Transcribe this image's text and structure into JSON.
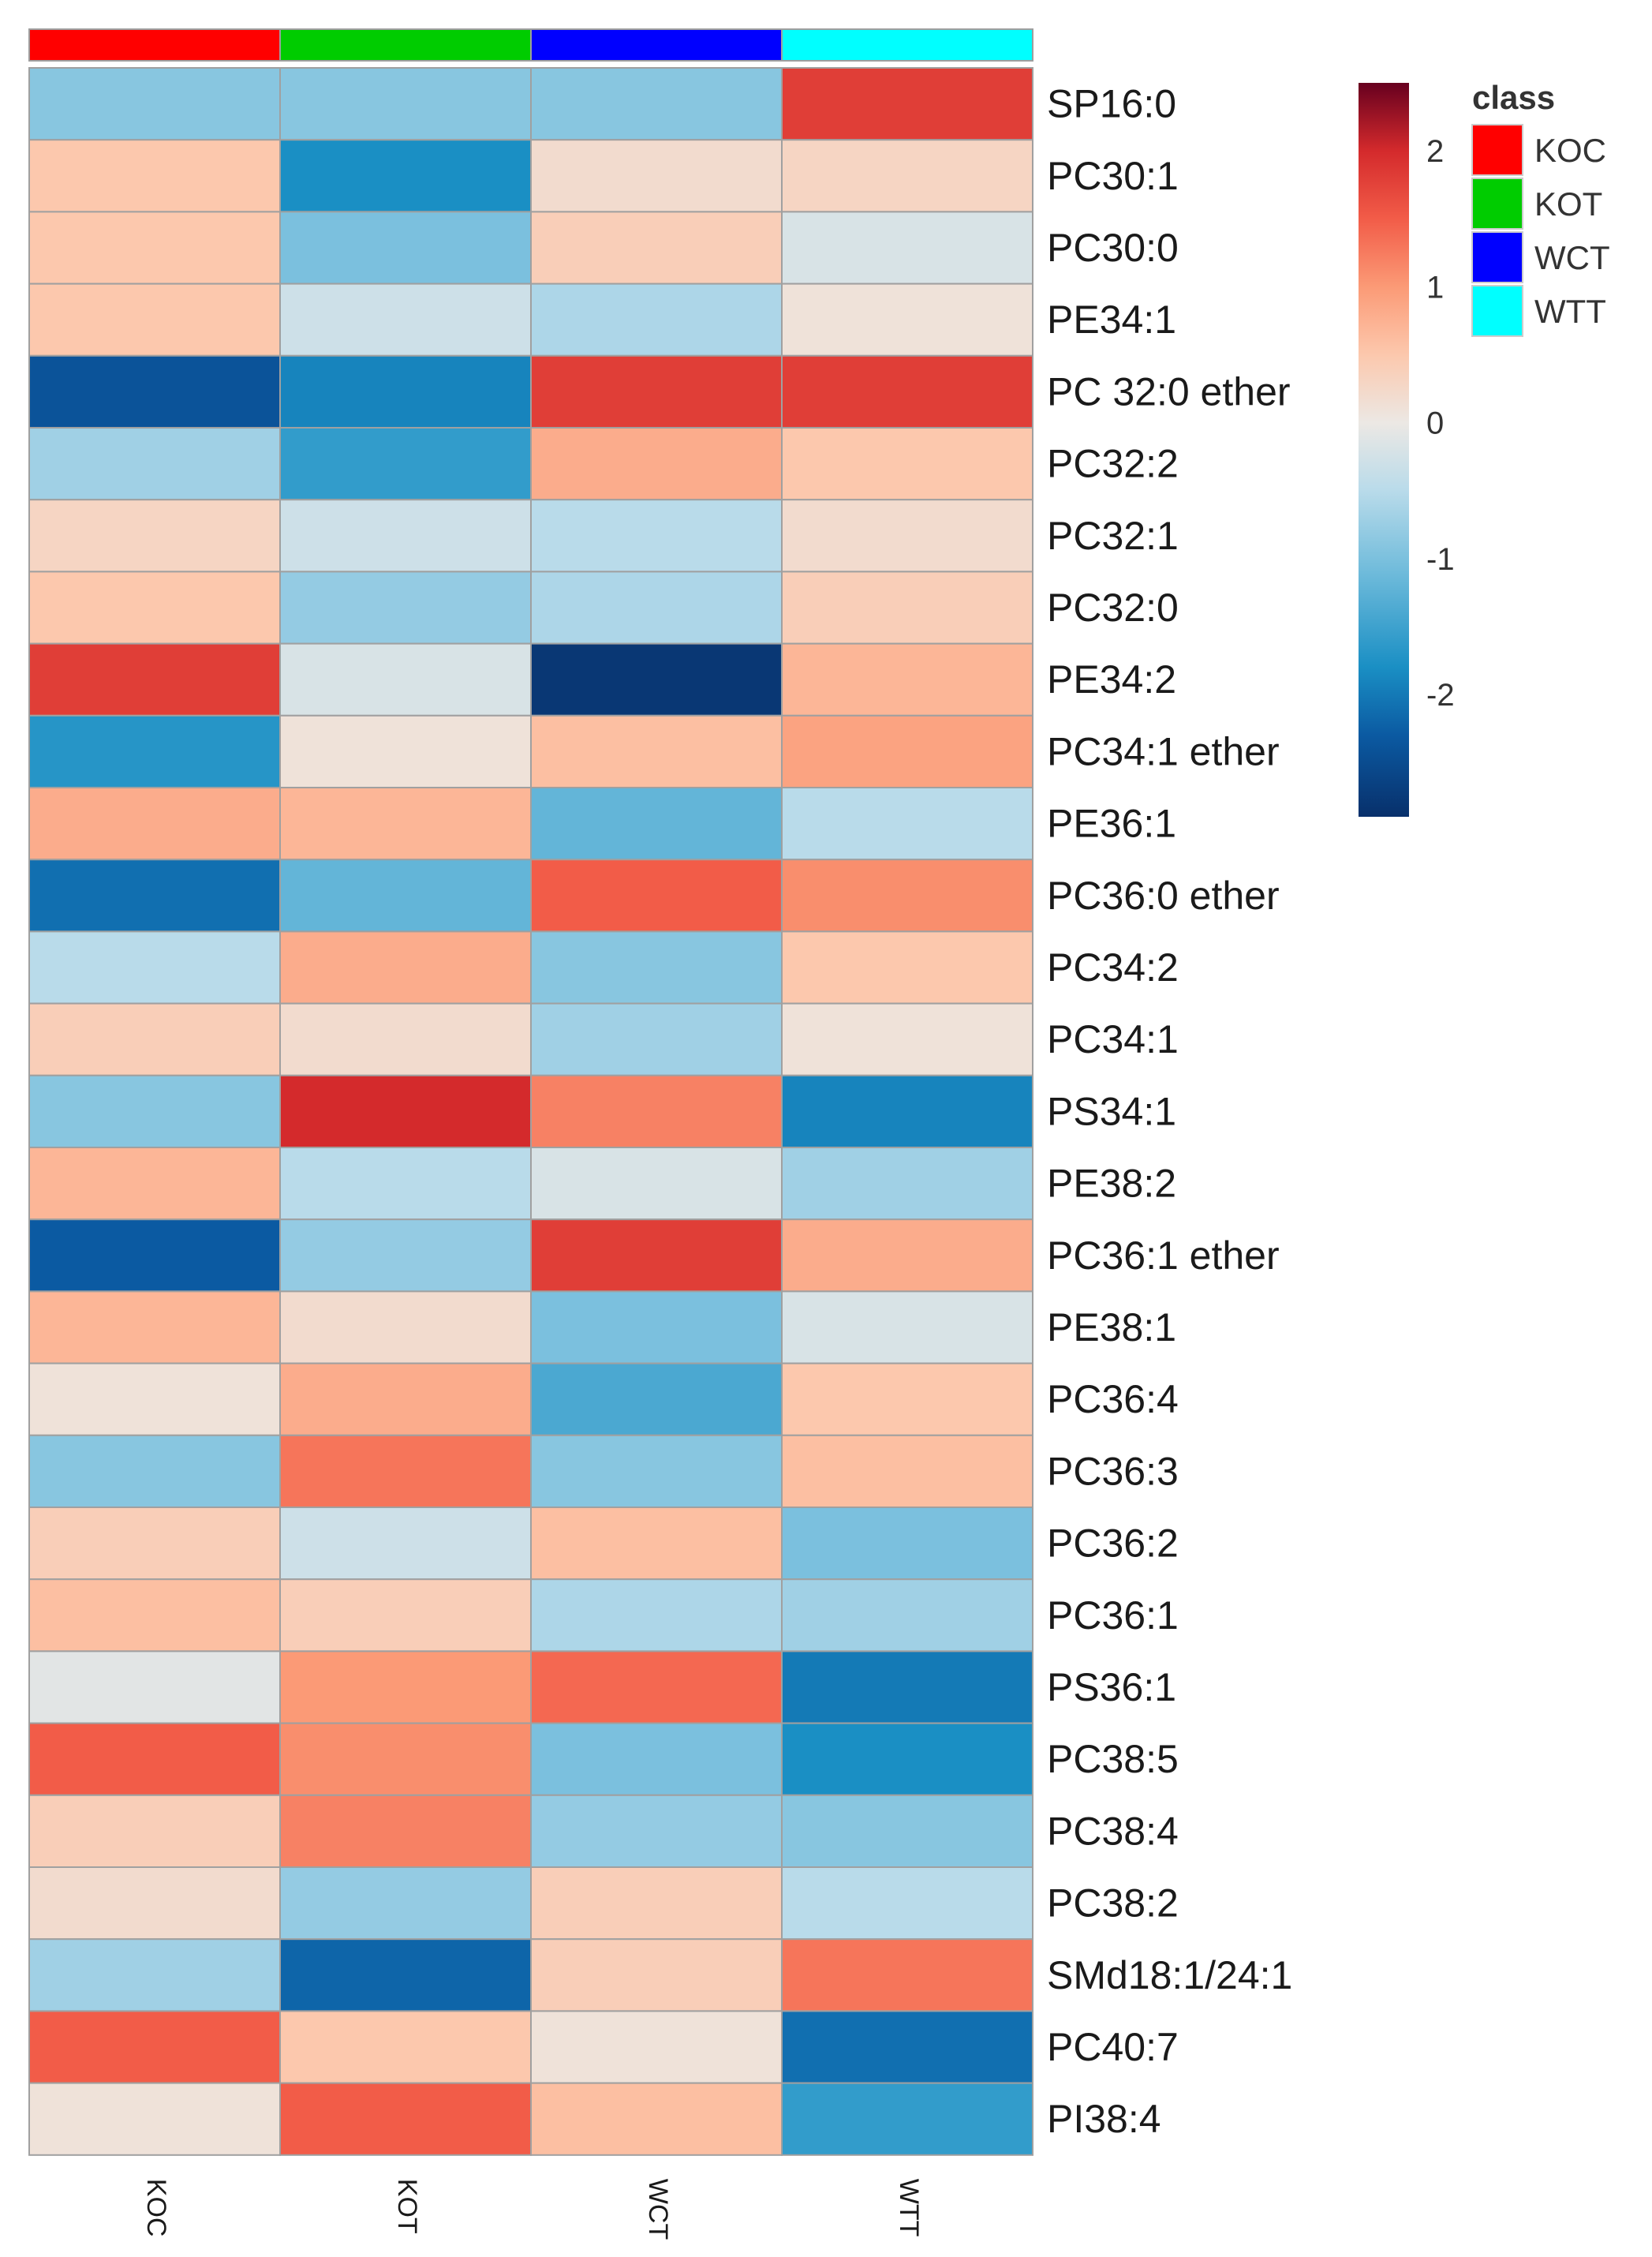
{
  "chart_data": {
    "type": "heatmap",
    "title": "",
    "columns": [
      "KOC",
      "KOT",
      "WCT",
      "WTT"
    ],
    "rows": [
      "SP16:0",
      "PC30:1",
      "PC30:0",
      "PE34:1",
      "PC 32:0 ether",
      "PC32:2",
      "PC32:1",
      "PC32:0",
      "PE34:2",
      "PC34:1 ether",
      "PE36:1",
      "PC36:0 ether",
      "PC34:2",
      "PC34:1",
      "PS34:1",
      "PE38:2",
      "PC36:1 ether",
      "PE38:1",
      "PC36:4",
      "PC36:3",
      "PC36:2",
      "PC36:1",
      "PS36:1",
      "PC38:5",
      "PC38:4",
      "PC38:2",
      "SMd18:1/24:1",
      "PC40:7",
      "PI38:4"
    ],
    "values": [
      [
        -0.9,
        -0.9,
        -0.9,
        1.8
      ],
      [
        0.5,
        -1.8,
        0.2,
        0.3
      ],
      [
        0.5,
        -1.0,
        0.4,
        -0.2
      ],
      [
        0.5,
        -0.3,
        -0.6,
        0.1
      ],
      [
        -2.4,
        -1.9,
        1.8,
        1.8
      ],
      [
        -0.7,
        -1.6,
        0.8,
        0.5
      ],
      [
        0.3,
        -0.3,
        -0.5,
        0.2
      ],
      [
        0.5,
        -0.8,
        -0.6,
        0.4
      ],
      [
        1.8,
        -0.2,
        -2.8,
        0.7
      ],
      [
        -1.7,
        0.1,
        0.6,
        0.9
      ],
      [
        0.8,
        0.7,
        -1.2,
        -0.5
      ],
      [
        -2.1,
        -1.2,
        1.5,
        1.1
      ],
      [
        -0.5,
        0.8,
        -0.9,
        0.5
      ],
      [
        0.4,
        0.2,
        -0.7,
        0.1
      ],
      [
        -0.9,
        2.0,
        1.2,
        -1.9
      ],
      [
        0.7,
        -0.5,
        -0.2,
        -0.7
      ],
      [
        -2.3,
        -0.8,
        1.8,
        0.8
      ],
      [
        0.7,
        0.2,
        -1.0,
        -0.2
      ],
      [
        0.1,
        0.8,
        -1.4,
        0.5
      ],
      [
        -0.9,
        1.3,
        -0.9,
        0.6
      ],
      [
        0.4,
        -0.3,
        0.6,
        -1.0
      ],
      [
        0.6,
        0.4,
        -0.6,
        -0.7
      ],
      [
        -0.1,
        1.0,
        1.4,
        -2.0
      ],
      [
        1.5,
        1.1,
        -1.0,
        -1.8
      ],
      [
        0.4,
        1.2,
        -0.8,
        -0.9
      ],
      [
        0.2,
        -0.8,
        0.4,
        -0.5
      ],
      [
        -0.7,
        -2.2,
        0.4,
        1.3
      ],
      [
        1.5,
        0.5,
        0.1,
        -2.1
      ],
      [
        0.1,
        1.5,
        0.6,
        -1.6
      ]
    ],
    "color_scale": {
      "min": -2.9,
      "max": 2.5,
      "low": "#08306b",
      "mid": "#f5f5f5",
      "high": "#67001f"
    },
    "colorbar_ticks": [
      "2",
      "1",
      "0",
      "-1",
      "-2"
    ],
    "legend": {
      "title": "class",
      "entries": [
        {
          "label": "KOC",
          "color": "#ff0000"
        },
        {
          "label": "KOT",
          "color": "#00cc00"
        },
        {
          "label": "WCT",
          "color": "#0000ff"
        },
        {
          "label": "WTT",
          "color": "#00ffff"
        }
      ]
    }
  }
}
